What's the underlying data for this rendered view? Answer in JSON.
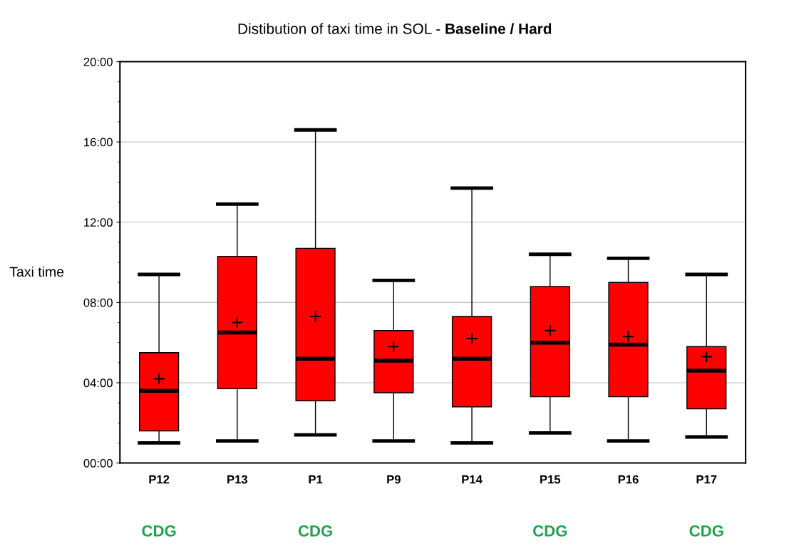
{
  "chart_data": {
    "type": "box",
    "title": "Distibution of taxi time in SOL - ",
    "subtitle": "Baseline / Hard",
    "ylabel": "Taxi time",
    "categories": [
      "P12",
      "P13",
      "P1",
      "P9",
      "P14",
      "P15",
      "P16",
      "P17"
    ],
    "boxes": [
      {
        "low": 1.0,
        "q1": 1.6,
        "median": 3.6,
        "q3": 5.5,
        "high": 9.4,
        "mean": 4.2
      },
      {
        "low": 1.1,
        "q1": 3.7,
        "median": 6.5,
        "q3": 10.3,
        "high": 12.9,
        "mean": 7.0
      },
      {
        "low": 1.4,
        "q1": 3.1,
        "median": 5.2,
        "q3": 10.7,
        "high": 16.6,
        "mean": 7.3
      },
      {
        "low": 1.1,
        "q1": 3.5,
        "median": 5.1,
        "q3": 6.6,
        "high": 9.1,
        "mean": 5.8
      },
      {
        "low": 1.0,
        "q1": 2.8,
        "median": 5.2,
        "q3": 7.3,
        "high": 13.7,
        "mean": 6.2
      },
      {
        "low": 1.5,
        "q1": 3.3,
        "median": 6.0,
        "q3": 8.8,
        "high": 10.4,
        "mean": 6.6
      },
      {
        "low": 1.1,
        "q1": 3.3,
        "median": 5.9,
        "q3": 9.0,
        "high": 10.2,
        "mean": 6.3
      },
      {
        "low": 1.3,
        "q1": 2.7,
        "median": 4.6,
        "q3": 5.8,
        "high": 9.4,
        "mean": 5.3
      }
    ],
    "color": "#ff0000",
    "ylim": [
      0,
      20
    ],
    "yticks": [
      {
        "value": 0,
        "label": "00:00"
      },
      {
        "value": 4,
        "label": "04:00"
      },
      {
        "value": 8,
        "label": "08:00"
      },
      {
        "value": 12,
        "label": "12:00"
      },
      {
        "value": 16,
        "label": "16:00"
      },
      {
        "value": 20,
        "label": "20:00"
      }
    ],
    "grid": "y",
    "annotations": [
      "CDG",
      "CDG",
      "CDG",
      "CDG"
    ]
  }
}
